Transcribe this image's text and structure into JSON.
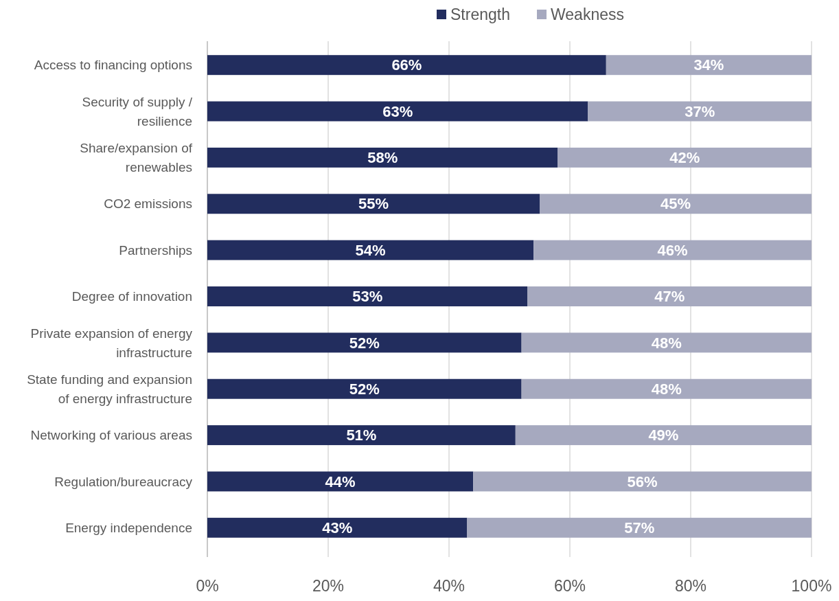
{
  "chart_data": {
    "type": "bar",
    "orientation": "horizontal",
    "stacked": true,
    "categories": [
      "Access to financing options",
      "Security of supply / resilience",
      "Share/expansion of renewables",
      "CO2 emissions",
      "Partnerships",
      "Degree of innovation",
      "Private expansion of energy infrastructure",
      "State funding and expansion of energy infrastructure",
      "Networking of various areas",
      "Regulation/bureaucracy",
      "Energy independence"
    ],
    "series": [
      {
        "name": "Strength",
        "color": "#222d5e",
        "values": [
          66,
          63,
          58,
          55,
          54,
          53,
          52,
          52,
          51,
          44,
          43
        ],
        "value_labels": [
          "66%",
          "63%",
          "58%",
          "55%",
          "54%",
          "53%",
          "52%",
          "52%",
          "51%",
          "44%",
          "43%"
        ]
      },
      {
        "name": "Weakness",
        "color": "#a6a9bf",
        "values": [
          34,
          37,
          42,
          45,
          46,
          47,
          48,
          48,
          49,
          56,
          57
        ],
        "value_labels": [
          "34%",
          "37%",
          "42%",
          "45%",
          "46%",
          "47%",
          "48%",
          "48%",
          "49%",
          "56%",
          "57%"
        ]
      }
    ],
    "xlim": [
      0,
      100
    ],
    "xticks": [
      {
        "value": 0,
        "label": "0%"
      },
      {
        "value": 20,
        "label": "20%"
      },
      {
        "value": 40,
        "label": "40%"
      },
      {
        "value": 60,
        "label": "60%"
      },
      {
        "value": 80,
        "label": "80%"
      },
      {
        "value": 100,
        "label": "100%"
      }
    ],
    "grid": "x",
    "legend": "top"
  }
}
